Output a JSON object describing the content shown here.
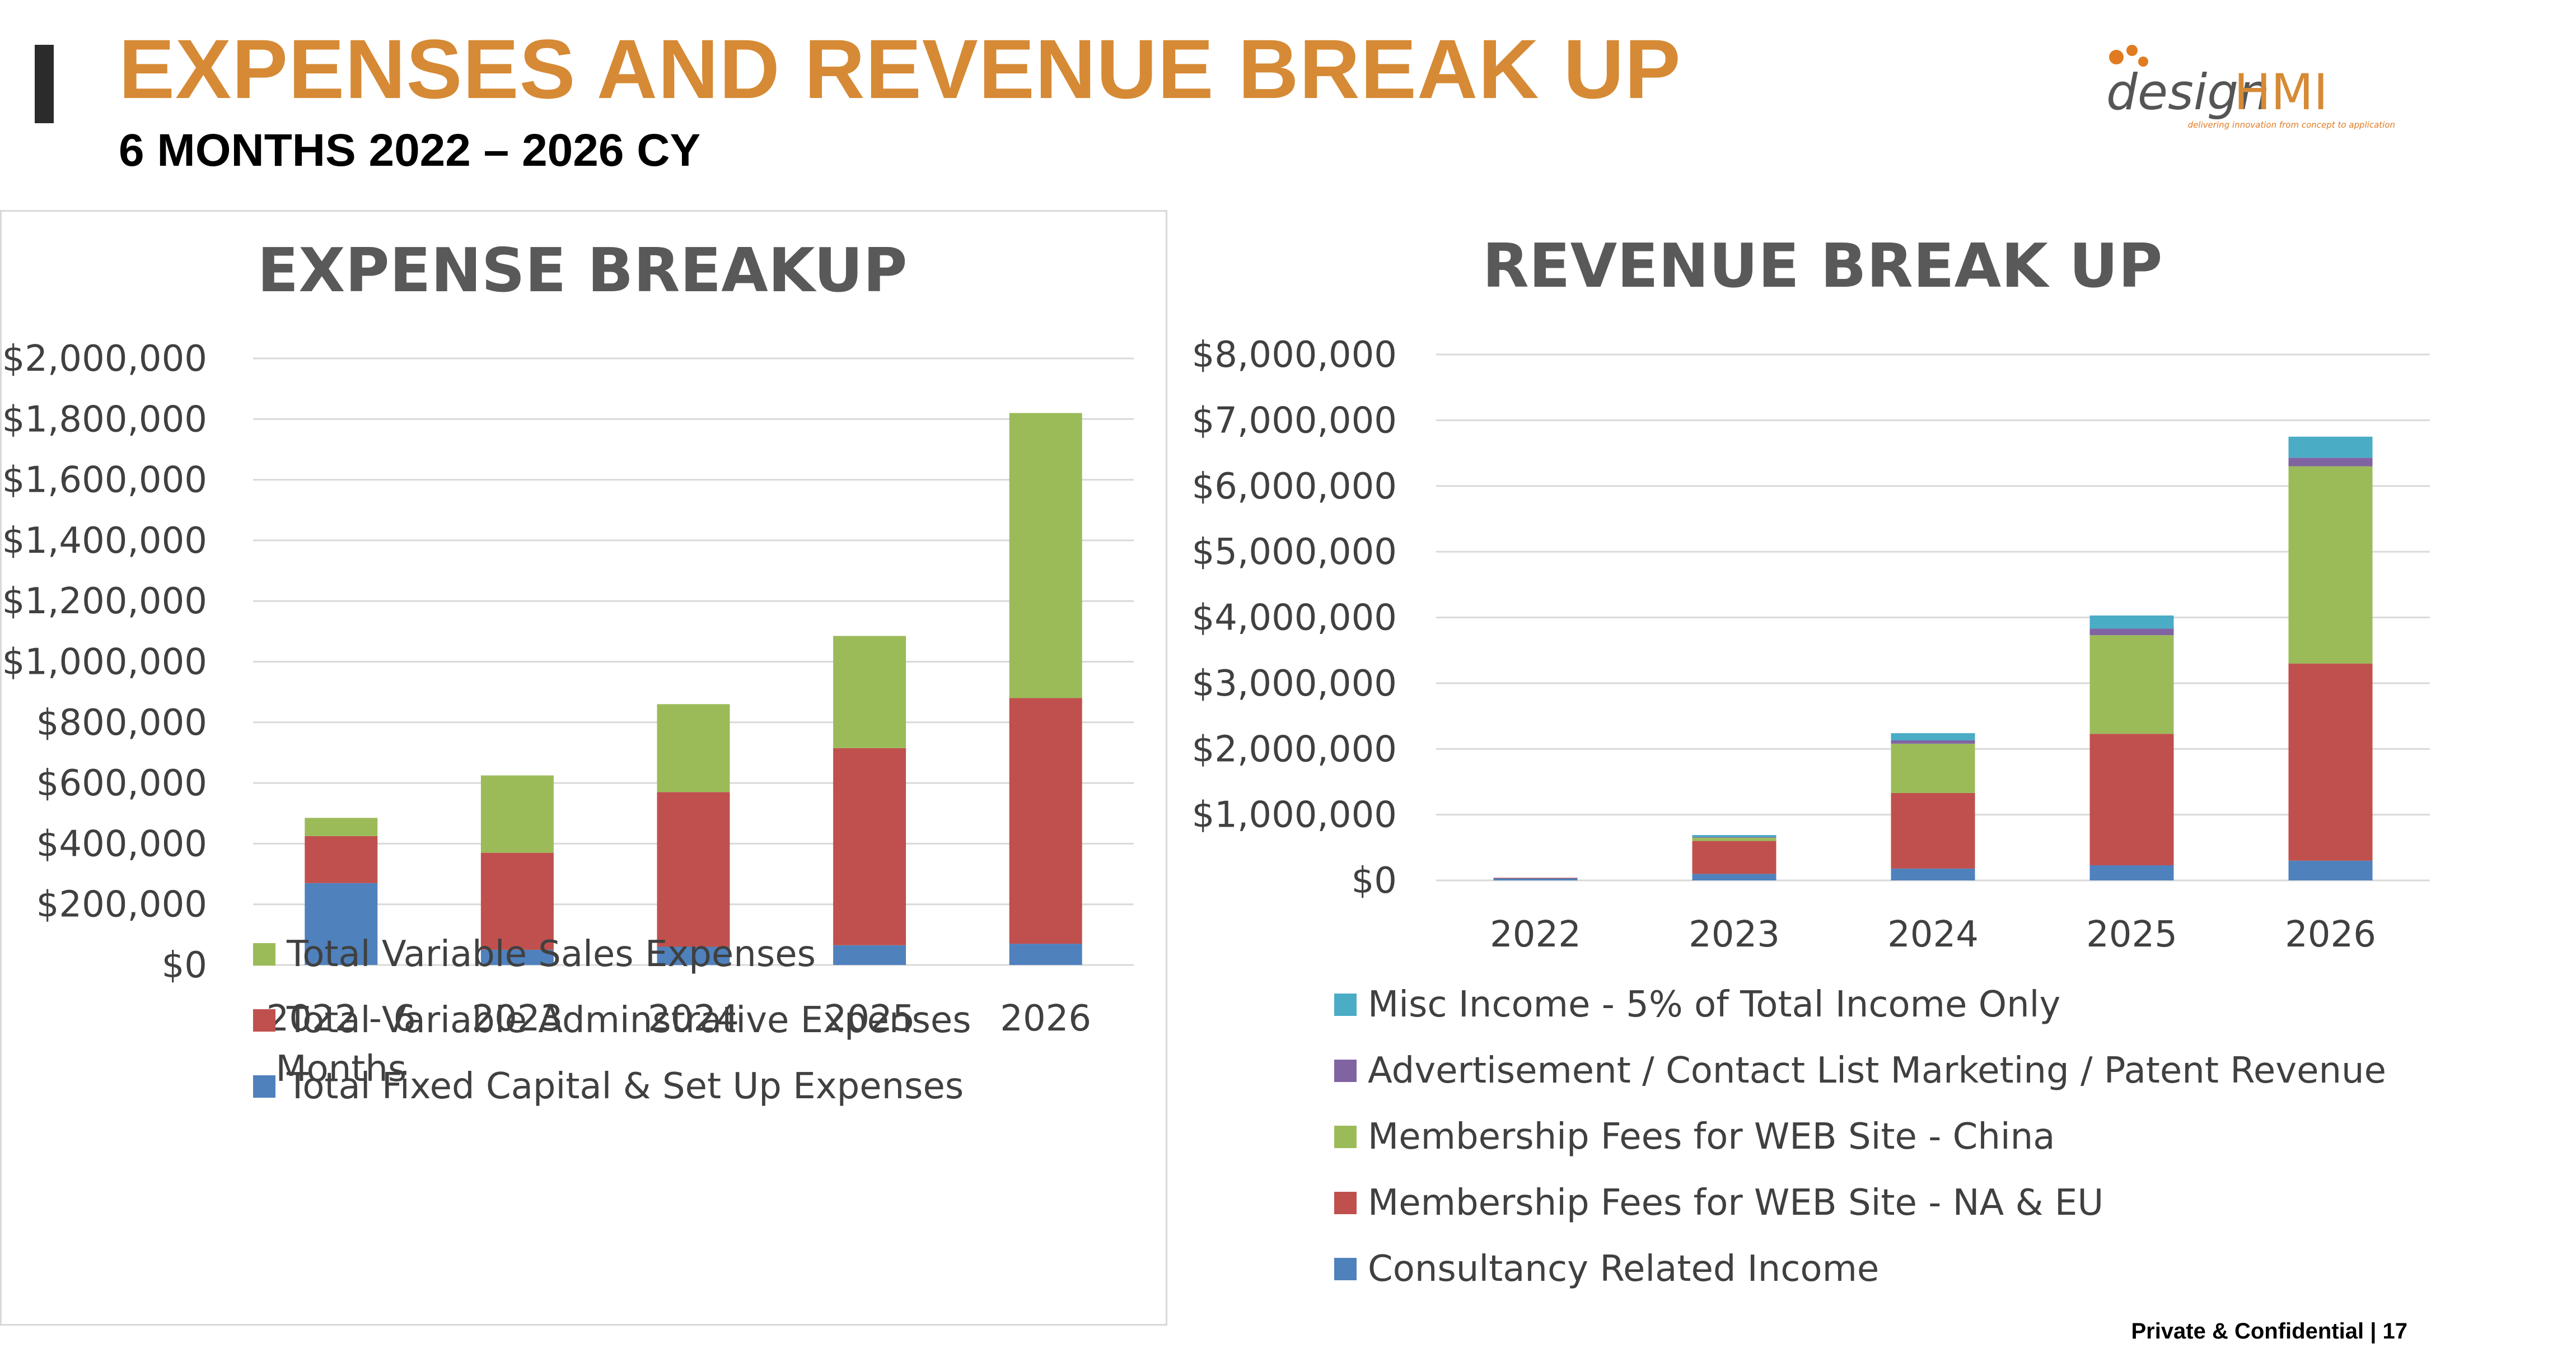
{
  "header": {
    "title": "EXPENSES AND REVENUE BREAK UP",
    "subtitle": "6 MONTHS 2022 – 2026 CY"
  },
  "logo": {
    "brand_prefix": "design",
    "brand_suffix": "HMI",
    "tagline": "delivering innovation from concept to application"
  },
  "footer": {
    "text": "Private & Confidential | 17"
  },
  "colors": {
    "title": "#d68a35",
    "blue": "#4f81bd",
    "red": "#c0504d",
    "green": "#9bbb59",
    "purple": "#8064a2",
    "teal": "#4bacc6"
  },
  "chart_data": [
    {
      "id": "expense",
      "type": "bar",
      "stacked": true,
      "title": "EXPENSE BREAKUP",
      "categories": [
        [
          "2022 - 6",
          "Months"
        ],
        [
          "2023"
        ],
        [
          "2024"
        ],
        [
          "2025"
        ],
        [
          "2026"
        ]
      ],
      "series": [
        {
          "name": "Total Fixed Capital & Set Up Expenses",
          "color": "#4f81bd",
          "values": [
            270000,
            50000,
            60000,
            65000,
            70000
          ]
        },
        {
          "name": "Total Variable Adminstrative Expenses",
          "color": "#c0504d",
          "values": [
            155000,
            320000,
            510000,
            650000,
            810000
          ]
        },
        {
          "name": "Total Variable Sales Expenses",
          "color": "#9bbb59",
          "values": [
            60000,
            255000,
            290000,
            370000,
            940000
          ]
        }
      ],
      "ylim": [
        0,
        2000000
      ],
      "yticks": [
        "$0",
        "$200,000",
        "$400,000",
        "$600,000",
        "$800,000",
        "$1,000,000",
        "$1,200,000",
        "$1,400,000",
        "$1,600,000",
        "$1,800,000",
        "$2,000,000"
      ],
      "xlabel": "",
      "ylabel": "",
      "grid": true,
      "legend": "bottom"
    },
    {
      "id": "revenue",
      "type": "bar",
      "stacked": true,
      "title": "REVENUE BREAK UP",
      "categories": [
        [
          "2022"
        ],
        [
          "2023"
        ],
        [
          "2024"
        ],
        [
          "2025"
        ],
        [
          "2026"
        ]
      ],
      "series": [
        {
          "name": "Consultancy Related Income",
          "color": "#4f81bd",
          "values": [
            30000,
            100000,
            180000,
            230000,
            300000
          ]
        },
        {
          "name": "Membership Fees for WEB Site  - NA & EU",
          "color": "#c0504d",
          "values": [
            10000,
            500000,
            1150000,
            2000000,
            3000000
          ]
        },
        {
          "name": "Membership Fees for WEB Site  - China",
          "color": "#9bbb59",
          "values": [
            0,
            50000,
            750000,
            1500000,
            3000000
          ]
        },
        {
          "name": "Advertisement / Contact List Marketing / Patent Revenue",
          "color": "#8064a2",
          "values": [
            0,
            10000,
            50000,
            100000,
            130000
          ]
        },
        {
          "name": "Misc Income - 5% of Total Income Only",
          "color": "#4bacc6",
          "values": [
            0,
            30000,
            110000,
            200000,
            320000
          ]
        }
      ],
      "ylim": [
        0,
        8000000
      ],
      "yticks": [
        "$0",
        "$1,000,000",
        "$2,000,000",
        "$3,000,000",
        "$4,000,000",
        "$5,000,000",
        "$6,000,000",
        "$7,000,000",
        "$8,000,000"
      ],
      "xlabel": "",
      "ylabel": "",
      "grid": true,
      "legend": "bottom"
    }
  ]
}
